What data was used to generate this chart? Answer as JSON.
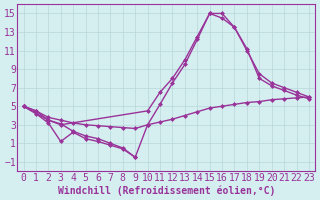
{
  "xlabel": "Windchill (Refroidissement éolien,°C)",
  "background_color": "#d5eef0",
  "grid_color": "#b8d8da",
  "line_color": "#993399",
  "xlim": [
    -0.5,
    23.5
  ],
  "ylim": [
    -2,
    16
  ],
  "xticks": [
    0,
    1,
    2,
    3,
    4,
    5,
    6,
    7,
    8,
    9,
    10,
    11,
    12,
    13,
    14,
    15,
    16,
    17,
    18,
    19,
    20,
    21,
    22,
    23
  ],
  "yticks": [
    -1,
    1,
    3,
    5,
    7,
    9,
    11,
    13,
    15
  ],
  "lines": [
    {
      "x": [
        0,
        1,
        2,
        3,
        4,
        5,
        6,
        7,
        8,
        9,
        10,
        11,
        12,
        13,
        14,
        15,
        16,
        17,
        18,
        19,
        20,
        21,
        22,
        23
      ],
      "y": [
        5.0,
        4.5,
        3.5,
        3.1,
        2.3,
        1.8,
        1.5,
        1.0,
        0.5,
        -0.5,
        3.0,
        5.2,
        7.5,
        9.5,
        12.2,
        15.0,
        15.0,
        13.5,
        11.2,
        8.0,
        7.2,
        6.7,
        6.2,
        5.8
      ]
    },
    {
      "x": [
        0,
        2,
        3,
        10,
        11,
        12,
        13,
        14,
        15,
        16,
        17,
        18,
        19,
        20,
        21,
        22,
        23
      ],
      "y": [
        5.0,
        3.5,
        3.0,
        4.5,
        6.5,
        8.0,
        10.0,
        12.5,
        15.0,
        14.5,
        13.5,
        11.0,
        8.5,
        7.5,
        7.0,
        6.5,
        6.0
      ]
    },
    {
      "x": [
        0,
        1,
        2,
        3,
        4,
        5,
        6,
        7,
        8,
        9,
        10,
        11,
        12,
        13,
        14,
        15,
        16,
        17,
        18,
        19,
        20,
        21,
        22,
        23
      ],
      "y": [
        5.0,
        4.5,
        3.8,
        3.5,
        3.2,
        3.0,
        2.9,
        2.8,
        2.7,
        2.6,
        3.0,
        3.3,
        3.6,
        4.0,
        4.4,
        4.8,
        5.0,
        5.2,
        5.4,
        5.5,
        5.7,
        5.8,
        5.9,
        6.0
      ]
    },
    {
      "x": [
        0,
        1,
        2,
        3,
        4,
        5,
        6,
        7,
        8,
        9
      ],
      "y": [
        5.0,
        4.2,
        3.2,
        1.2,
        2.2,
        1.5,
        1.2,
        0.8,
        0.4,
        -0.5
      ]
    }
  ],
  "font_size": 7,
  "marker": "D",
  "marker_size": 2.5,
  "line_width": 1.0
}
